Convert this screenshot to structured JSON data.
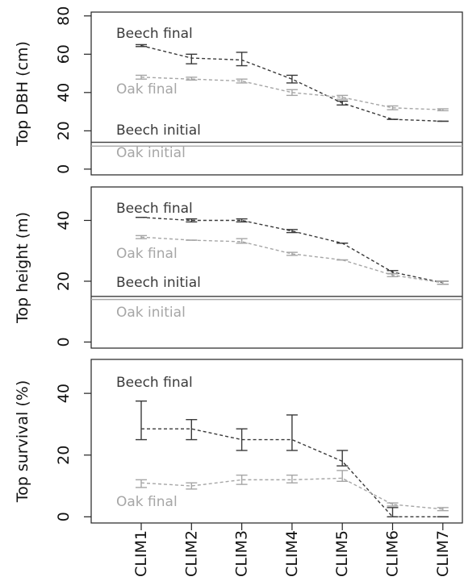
{
  "chart_data": [
    {
      "type": "line",
      "ylabel": "Top DBH (cm)",
      "ylim": [
        -3,
        82
      ],
      "yticks": [
        0,
        20,
        40,
        60,
        80
      ],
      "categories": [
        "CLIM1",
        "CLIM2",
        "CLIM3",
        "CLIM4",
        "CLIM5",
        "CLIM6",
        "CLIM7"
      ],
      "series": [
        {
          "name": "Beech final",
          "color": "#3a3a3a",
          "values": [
            64.5,
            58,
            57,
            47,
            34.5,
            26,
            25
          ],
          "errors": [
            [
              64,
              65
            ],
            [
              55,
              60
            ],
            [
              54,
              61
            ],
            [
              45,
              49
            ],
            [
              33.5,
              35.5
            ],
            [
              26,
              26
            ],
            [
              25,
              25
            ]
          ]
        },
        {
          "name": "Oak final",
          "color": "#a6a6a6",
          "values": [
            48,
            47,
            46,
            40,
            37.5,
            32,
            31
          ],
          "errors": [
            [
              47,
              49
            ],
            [
              46.5,
              48
            ],
            [
              45,
              47
            ],
            [
              38.5,
              41.5
            ],
            [
              36.5,
              38.5
            ],
            [
              31,
              33
            ],
            [
              30.5,
              31.5
            ]
          ]
        }
      ],
      "hlines": [
        {
          "name": "Beech initial",
          "value": 14,
          "color": "#3a3a3a"
        },
        {
          "name": "Oak initial",
          "value": 12,
          "color": "#a6a6a6"
        }
      ]
    },
    {
      "type": "line",
      "ylabel": "Top height (m)",
      "ylim": [
        -2,
        51
      ],
      "yticks": [
        0,
        20,
        40
      ],
      "categories": [
        "CLIM1",
        "CLIM2",
        "CLIM3",
        "CLIM4",
        "CLIM5",
        "CLIM6",
        "CLIM7"
      ],
      "series": [
        {
          "name": "Beech final",
          "color": "#3a3a3a",
          "values": [
            41,
            40,
            40,
            36.5,
            32.5,
            23,
            19.5
          ],
          "errors": [
            [
              41,
              41
            ],
            [
              39.5,
              40.5
            ],
            [
              39.5,
              40.5
            ],
            [
              36,
              37
            ],
            [
              32.5,
              32.5
            ],
            [
              22.5,
              23.5
            ],
            [
              19,
              20
            ]
          ]
        },
        {
          "name": "Oak final",
          "color": "#a6a6a6",
          "values": [
            34.5,
            33.5,
            33,
            29,
            27,
            22,
            19.5
          ],
          "errors": [
            [
              34,
              35
            ],
            [
              33.5,
              33.5
            ],
            [
              32.5,
              34
            ],
            [
              28.5,
              29.5
            ],
            [
              27,
              27
            ],
            [
              21.5,
              22.5
            ],
            [
              19,
              20
            ]
          ]
        }
      ],
      "hlines": [
        {
          "name": "Beech initial",
          "value": 15,
          "color": "#3a3a3a"
        },
        {
          "name": "Oak initial",
          "value": 14,
          "color": "#a6a6a6"
        }
      ]
    },
    {
      "type": "line",
      "ylabel": "Top survival (%)",
      "ylim": [
        -2,
        51
      ],
      "yticks": [
        0,
        20,
        40
      ],
      "categories": [
        "CLIM1",
        "CLIM2",
        "CLIM3",
        "CLIM4",
        "CLIM5",
        "CLIM6",
        "CLIM7"
      ],
      "series": [
        {
          "name": "Beech final",
          "color": "#3a3a3a",
          "values": [
            28.5,
            28.5,
            25,
            25,
            18,
            0,
            0
          ],
          "errors": [
            [
              25,
              37.5
            ],
            [
              25,
              31.5
            ],
            [
              21.5,
              28.5
            ],
            [
              21.5,
              33
            ],
            [
              16.5,
              21.5
            ],
            [
              0,
              3
            ],
            [
              0,
              0
            ]
          ]
        },
        {
          "name": "Oak final",
          "color": "#a6a6a6",
          "values": [
            11,
            10,
            12,
            12,
            12.5,
            4,
            2.5
          ],
          "errors": [
            [
              9.5,
              12
            ],
            [
              9,
              11
            ],
            [
              10.5,
              13.5
            ],
            [
              11,
              13.5
            ],
            [
              11.5,
              15
            ],
            [
              3.5,
              4.5
            ],
            [
              2,
              3
            ]
          ]
        }
      ],
      "hlines": []
    }
  ]
}
